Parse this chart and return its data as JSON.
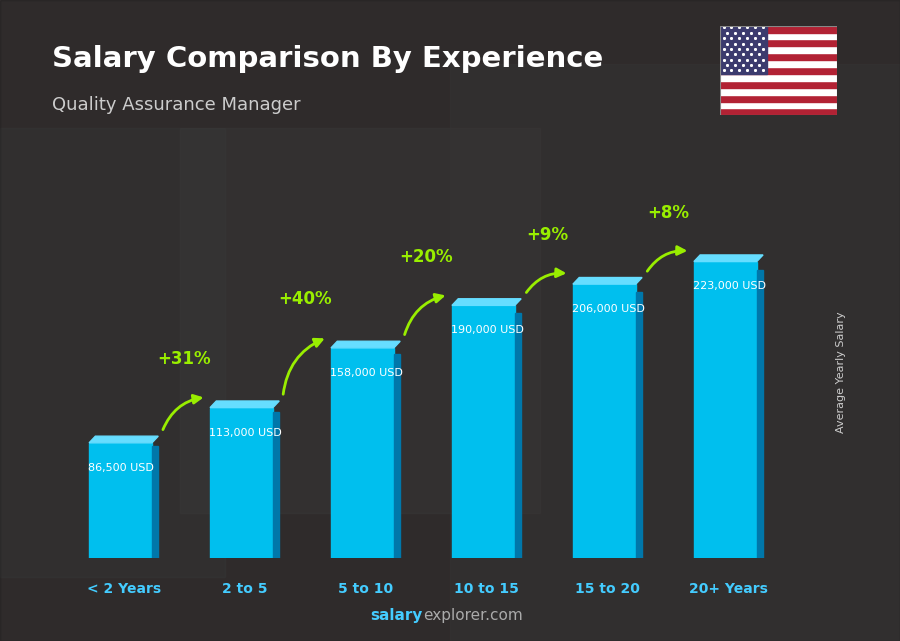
{
  "title": "Salary Comparison By Experience",
  "subtitle": "Quality Assurance Manager",
  "ylabel": "Average Yearly Salary",
  "categories": [
    "< 2 Years",
    "2 to 5",
    "5 to 10",
    "10 to 15",
    "15 to 20",
    "20+ Years"
  ],
  "values": [
    86500,
    113000,
    158000,
    190000,
    206000,
    223000
  ],
  "value_labels": [
    "86,500 USD",
    "113,000 USD",
    "158,000 USD",
    "190,000 USD",
    "206,000 USD",
    "223,000 USD"
  ],
  "pct_labels": [
    "+31%",
    "+40%",
    "+20%",
    "+9%",
    "+8%"
  ],
  "bar_color_front": "#00BFEE",
  "bar_color_side": "#0077AA",
  "bar_color_top": "#66DDFF",
  "bg_color": "#3a3a3a",
  "overlay_color": "#1a1a2a",
  "title_color": "#ffffff",
  "subtitle_color": "#cccccc",
  "label_color": "#ffffff",
  "pct_color": "#99EE00",
  "tick_color": "#44CCFF",
  "footer_salary_color": "#44CCFF",
  "footer_explorer_color": "#aaaaaa",
  "ylabel_color": "#cccccc",
  "ylim": [
    0,
    280000
  ],
  "figsize": [
    9.0,
    6.41
  ],
  "dpi": 100
}
